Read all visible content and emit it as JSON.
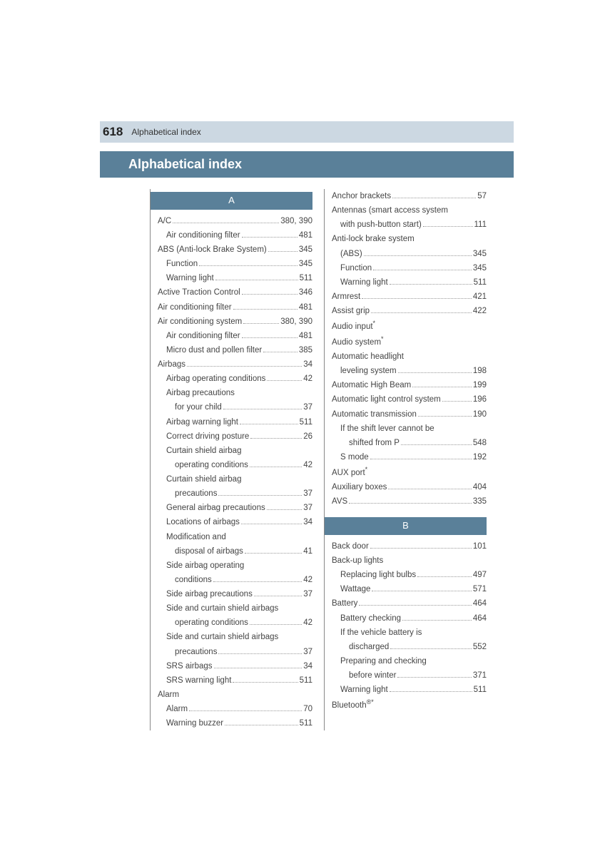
{
  "header": {
    "pageNumber": "618",
    "headerText": "Alphabetical index"
  },
  "titleBand": "Alphabetical index",
  "colors": {
    "headerBand": "#ccd8e2",
    "titleBand": "#5a8099",
    "sectionHead": "#5a8099",
    "text": "#444",
    "border": "#888"
  },
  "sectionA": "A",
  "sectionB": "B",
  "col1": [
    {
      "label": "A/C",
      "page": "380, 390",
      "indent": 0
    },
    {
      "label": "Air conditioning filter",
      "page": "481",
      "indent": 1
    },
    {
      "label": "ABS (Anti-lock Brake System)",
      "page": "345",
      "indent": 0
    },
    {
      "label": "Function",
      "page": "345",
      "indent": 1
    },
    {
      "label": "Warning light",
      "page": "511",
      "indent": 1
    },
    {
      "label": "Active Traction Control",
      "page": "346",
      "indent": 0
    },
    {
      "label": "Air conditioning filter",
      "page": "481",
      "indent": 0
    },
    {
      "label": "Air conditioning system",
      "page": "380, 390",
      "indent": 0
    },
    {
      "label": "Air conditioning filter",
      "page": "481",
      "indent": 1
    },
    {
      "label": "Micro dust and pollen filter",
      "page": "385",
      "indent": 1
    },
    {
      "label": "Airbags",
      "page": "34",
      "indent": 0
    },
    {
      "label": "Airbag operating conditions",
      "page": "42",
      "indent": 1
    },
    {
      "label": "Airbag precautions",
      "page": "",
      "indent": 1,
      "nodots": true
    },
    {
      "label": "for your child",
      "page": "37",
      "indent": 2
    },
    {
      "label": "Airbag warning light",
      "page": "511",
      "indent": 1
    },
    {
      "label": "Correct driving posture",
      "page": "26",
      "indent": 1
    },
    {
      "label": "Curtain shield airbag",
      "page": "",
      "indent": 1,
      "nodots": true
    },
    {
      "label": "operating conditions",
      "page": "42",
      "indent": 2
    },
    {
      "label": "Curtain shield airbag",
      "page": "",
      "indent": 1,
      "nodots": true
    },
    {
      "label": "precautions",
      "page": "37",
      "indent": 2
    },
    {
      "label": "General airbag precautions",
      "page": "37",
      "indent": 1
    },
    {
      "label": "Locations of airbags",
      "page": "34",
      "indent": 1
    },
    {
      "label": "Modification and",
      "page": "",
      "indent": 1,
      "nodots": true
    },
    {
      "label": "disposal of airbags",
      "page": "41",
      "indent": 2
    },
    {
      "label": "Side airbag operating",
      "page": "",
      "indent": 1,
      "nodots": true
    },
    {
      "label": "conditions",
      "page": "42",
      "indent": 2
    },
    {
      "label": "Side airbag precautions",
      "page": "37",
      "indent": 1
    },
    {
      "label": "Side and curtain shield airbags",
      "page": "",
      "indent": 1,
      "nodots": true
    },
    {
      "label": "operating conditions",
      "page": "42",
      "indent": 2
    },
    {
      "label": "Side and curtain shield airbags",
      "page": "",
      "indent": 1,
      "nodots": true
    },
    {
      "label": "precautions",
      "page": "37",
      "indent": 2
    },
    {
      "label": "SRS airbags",
      "page": "34",
      "indent": 1
    },
    {
      "label": "SRS warning light",
      "page": "511",
      "indent": 1
    },
    {
      "label": "Alarm",
      "page": "",
      "indent": 0,
      "nodots": true
    },
    {
      "label": "Alarm",
      "page": "70",
      "indent": 1
    },
    {
      "label": "Warning buzzer",
      "page": "511",
      "indent": 1
    }
  ],
  "col2top": [
    {
      "label": "Anchor brackets",
      "page": "57",
      "indent": 0
    },
    {
      "label": "Antennas (smart access system",
      "page": "",
      "indent": 0,
      "nodots": true
    },
    {
      "label": "with push-button start)",
      "page": "111",
      "indent": 1
    },
    {
      "label": "Anti-lock brake system",
      "page": "",
      "indent": 0,
      "nodots": true
    },
    {
      "label": "(ABS)",
      "page": "345",
      "indent": 1
    },
    {
      "label": "Function",
      "page": "345",
      "indent": 1
    },
    {
      "label": "Warning light",
      "page": "511",
      "indent": 1
    },
    {
      "label": "Armrest",
      "page": "421",
      "indent": 0
    },
    {
      "label": "Assist grip",
      "page": "422",
      "indent": 0
    },
    {
      "label": "Audio input",
      "page": "",
      "indent": 0,
      "nodots": true,
      "asterisk": true
    },
    {
      "label": "Audio system",
      "page": "",
      "indent": 0,
      "nodots": true,
      "asterisk": true
    },
    {
      "label": "Automatic headlight",
      "page": "",
      "indent": 0,
      "nodots": true
    },
    {
      "label": "leveling system",
      "page": "198",
      "indent": 1
    },
    {
      "label": "Automatic High Beam",
      "page": "199",
      "indent": 0
    },
    {
      "label": "Automatic light control system",
      "page": "196",
      "indent": 0
    },
    {
      "label": "Automatic transmission",
      "page": "190",
      "indent": 0
    },
    {
      "label": "If the shift lever cannot be",
      "page": "",
      "indent": 1,
      "nodots": true
    },
    {
      "label": "shifted from P",
      "page": "548",
      "indent": 2
    },
    {
      "label": "S mode",
      "page": "192",
      "indent": 1
    },
    {
      "label": "AUX port",
      "page": "",
      "indent": 0,
      "nodots": true,
      "asterisk": true
    },
    {
      "label": "Auxiliary boxes",
      "page": "404",
      "indent": 0
    },
    {
      "label": "AVS",
      "page": "335",
      "indent": 0
    }
  ],
  "col2bot": [
    {
      "label": "Back door",
      "page": "101",
      "indent": 0
    },
    {
      "label": "Back-up lights",
      "page": "",
      "indent": 0,
      "nodots": true
    },
    {
      "label": "Replacing light bulbs",
      "page": "497",
      "indent": 1
    },
    {
      "label": "Wattage",
      "page": "571",
      "indent": 1
    },
    {
      "label": "Battery",
      "page": "464",
      "indent": 0
    },
    {
      "label": "Battery checking",
      "page": "464",
      "indent": 1
    },
    {
      "label": "If the vehicle battery is",
      "page": "",
      "indent": 1,
      "nodots": true
    },
    {
      "label": "discharged",
      "page": "552",
      "indent": 2
    },
    {
      "label": "Preparing and checking",
      "page": "",
      "indent": 1,
      "nodots": true
    },
    {
      "label": "before winter",
      "page": "371",
      "indent": 2
    },
    {
      "label": "Warning light",
      "page": "511",
      "indent": 1
    },
    {
      "label": "Bluetooth",
      "page": "",
      "indent": 0,
      "nodots": true,
      "reg": true,
      "asterisk": true
    }
  ]
}
